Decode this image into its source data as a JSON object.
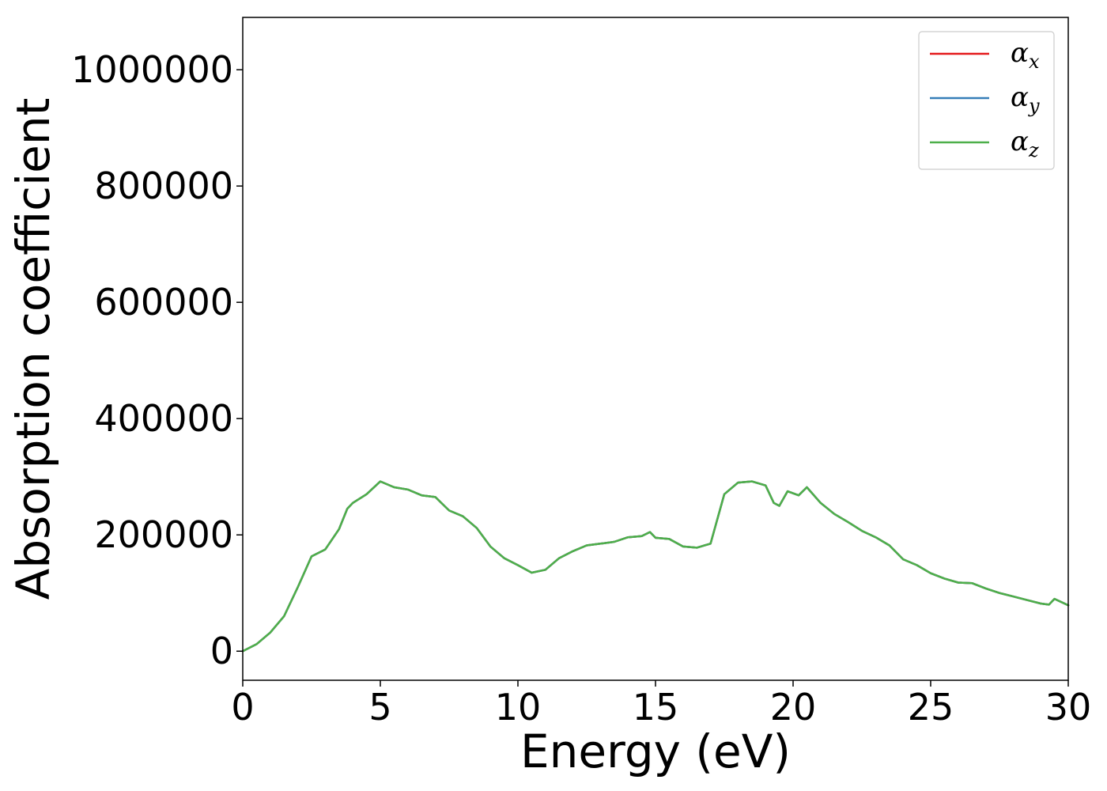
{
  "chart_data": {
    "type": "line",
    "title": "",
    "xlabel": "Energy (eV)",
    "ylabel": "Absorption coefficient",
    "xlim": [
      0,
      30
    ],
    "ylim": [
      -50000,
      1090000
    ],
    "x_ticks": [
      0,
      5,
      10,
      15,
      20,
      25,
      30
    ],
    "x_tick_labels": [
      "0",
      "5",
      "10",
      "15",
      "20",
      "25",
      "30"
    ],
    "y_ticks": [
      0,
      200000,
      400000,
      600000,
      800000,
      1000000
    ],
    "y_tick_labels": [
      "0",
      "200000",
      "400000",
      "600000",
      "800000",
      "1000000"
    ],
    "grid": false,
    "legend_position": "top-right",
    "x": [
      0,
      0.5,
      1.0,
      1.5,
      2.0,
      2.5,
      3.0,
      3.5,
      3.8,
      4.0,
      4.5,
      5.0,
      5.5,
      6.0,
      6.5,
      7.0,
      7.5,
      8.0,
      8.5,
      9.0,
      9.5,
      10.0,
      10.5,
      11.0,
      11.5,
      12.0,
      12.5,
      13.0,
      13.5,
      14.0,
      14.5,
      14.8,
      15.0,
      15.5,
      16.0,
      16.5,
      17.0,
      17.5,
      18.0,
      18.5,
      19.0,
      19.3,
      19.5,
      19.8,
      20.2,
      20.5,
      21.0,
      21.5,
      22.0,
      22.5,
      23.0,
      23.5,
      24.0,
      24.5,
      25.0,
      25.5,
      26.0,
      26.5,
      27.0,
      27.5,
      28.0,
      28.5,
      29.0,
      29.3,
      29.5,
      30.0
    ],
    "series": [
      {
        "name": "αx",
        "color": "#e41a1c",
        "values": [
          0,
          12000,
          32000,
          60000,
          110000,
          163000,
          175000,
          210000,
          245000,
          255000,
          270000,
          292000,
          282000,
          278000,
          268000,
          265000,
          242000,
          232000,
          212000,
          180000,
          160000,
          148000,
          135000,
          140000,
          160000,
          172000,
          182000,
          185000,
          188000,
          196000,
          198000,
          205000,
          195000,
          193000,
          180000,
          178000,
          185000,
          270000,
          290000,
          292000,
          285000,
          255000,
          250000,
          275000,
          268000,
          282000,
          255000,
          236000,
          222000,
          207000,
          196000,
          182000,
          158000,
          148000,
          134000,
          125000,
          118000,
          117000,
          108000,
          100000,
          94000,
          88000,
          82000,
          80000,
          90000,
          79000
        ]
      },
      {
        "name": "αy",
        "color": "#377eb8",
        "values": [
          0,
          12000,
          32000,
          60000,
          110000,
          163000,
          175000,
          210000,
          245000,
          255000,
          270000,
          292000,
          282000,
          278000,
          268000,
          265000,
          242000,
          232000,
          212000,
          180000,
          160000,
          148000,
          135000,
          140000,
          160000,
          172000,
          182000,
          185000,
          188000,
          196000,
          198000,
          205000,
          195000,
          193000,
          180000,
          178000,
          185000,
          270000,
          290000,
          292000,
          285000,
          255000,
          250000,
          275000,
          268000,
          282000,
          255000,
          236000,
          222000,
          207000,
          196000,
          182000,
          158000,
          148000,
          134000,
          125000,
          118000,
          117000,
          108000,
          100000,
          94000,
          88000,
          82000,
          80000,
          90000,
          79000
        ]
      },
      {
        "name": "αz",
        "color": "#4daf4a",
        "values": [
          0,
          12000,
          32000,
          60000,
          110000,
          163000,
          175000,
          210000,
          245000,
          255000,
          270000,
          292000,
          282000,
          278000,
          268000,
          265000,
          242000,
          232000,
          212000,
          180000,
          160000,
          148000,
          135000,
          140000,
          160000,
          172000,
          182000,
          185000,
          188000,
          196000,
          198000,
          205000,
          195000,
          193000,
          180000,
          178000,
          185000,
          270000,
          290000,
          292000,
          285000,
          255000,
          250000,
          275000,
          268000,
          282000,
          255000,
          236000,
          222000,
          207000,
          196000,
          182000,
          158000,
          148000,
          134000,
          125000,
          118000,
          117000,
          108000,
          100000,
          94000,
          88000,
          82000,
          80000,
          90000,
          79000
        ]
      }
    ],
    "legend": [
      {
        "base": "α",
        "sub": "x",
        "color": "#e41a1c"
      },
      {
        "base": "α",
        "sub": "y",
        "color": "#377eb8"
      },
      {
        "base": "α",
        "sub": "z",
        "color": "#4daf4a"
      }
    ]
  }
}
